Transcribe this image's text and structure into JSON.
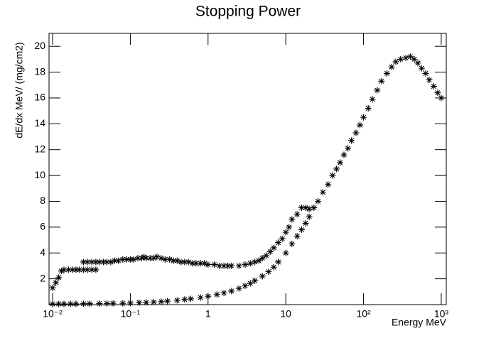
{
  "chart_data": {
    "type": "scatter",
    "title": "Stopping Power",
    "x_label": "Energy MeV",
    "y_label": "dE/dx  MeV/ (mg/cm2)",
    "xlog": true,
    "xlim": [
      0.009,
      1160
    ],
    "ylim": [
      0,
      21
    ],
    "xticks": [
      {
        "value": 0.01,
        "label": "10⁻²"
      },
      {
        "value": 0.1,
        "label": "10⁻¹"
      },
      1,
      10,
      {
        "value": 100,
        "label": "10²"
      },
      {
        "value": 1000,
        "label": "10³"
      }
    ],
    "yticks": [
      2,
      4,
      6,
      8,
      10,
      12,
      14,
      16,
      18,
      20
    ],
    "series": [
      {
        "color": "#000000",
        "x": [
          0.01,
          0.011,
          0.012,
          0.013,
          0.014,
          0.016,
          0.018,
          0.02,
          0.022,
          0.025,
          0.028,
          0.032,
          0.036,
          0.025,
          0.028,
          0.032,
          0.036,
          0.04,
          0.045,
          0.05,
          0.056,
          0.063,
          0.07,
          0.08,
          0.09,
          0.1,
          0.11,
          0.125,
          0.14,
          0.15,
          0.16,
          0.18,
          0.2,
          0.22,
          0.25,
          0.28,
          0.32,
          0.36,
          0.4,
          0.45,
          0.5,
          0.56,
          0.63,
          0.7,
          0.8,
          0.9,
          1.0,
          1.2,
          1.4,
          1.6,
          1.8,
          2.0,
          2.5,
          3.0,
          3.5,
          4.0,
          4.5,
          5,
          5.6,
          6.3,
          7,
          8,
          9,
          10,
          11,
          12,
          14,
          16,
          18,
          20
        ],
        "values": [
          1.3,
          1.7,
          2.1,
          2.6,
          2.7,
          2.7,
          2.7,
          2.7,
          2.7,
          2.7,
          2.7,
          2.7,
          2.7,
          3.3,
          3.3,
          3.3,
          3.3,
          3.3,
          3.3,
          3.3,
          3.3,
          3.4,
          3.4,
          3.5,
          3.5,
          3.5,
          3.5,
          3.6,
          3.6,
          3.7,
          3.6,
          3.6,
          3.6,
          3.7,
          3.6,
          3.5,
          3.5,
          3.4,
          3.4,
          3.3,
          3.3,
          3.3,
          3.2,
          3.2,
          3.2,
          3.2,
          3.1,
          3.1,
          3.0,
          3.0,
          3.0,
          3.0,
          3.0,
          3.1,
          3.2,
          3.3,
          3.4,
          3.6,
          3.8,
          4.1,
          4.4,
          4.8,
          5.1,
          5.6,
          6.0,
          6.6,
          7.0,
          7.5,
          7.5,
          7.4
        ]
      },
      {
        "color": "#000000",
        "x": [
          0.01,
          0.012,
          0.014,
          0.017,
          0.02,
          0.025,
          0.03,
          0.04,
          0.05,
          0.06,
          0.08,
          0.1,
          0.13,
          0.16,
          0.2,
          0.25,
          0.3,
          0.4,
          0.5,
          0.6,
          0.8,
          1,
          1.3,
          1.6,
          2,
          2.5,
          3,
          3.5,
          4,
          5,
          6,
          7,
          8,
          10,
          12,
          14,
          16,
          18,
          20,
          23,
          26,
          30,
          35,
          40,
          45,
          50,
          56,
          63,
          70,
          80,
          90,
          100,
          115,
          130,
          150,
          170,
          200,
          230,
          260,
          300,
          350,
          400,
          450,
          500,
          560,
          630,
          700,
          800,
          900,
          1000
        ],
        "values": [
          0.05,
          0.05,
          0.05,
          0.06,
          0.06,
          0.07,
          0.07,
          0.08,
          0.09,
          0.1,
          0.1,
          0.12,
          0.15,
          0.17,
          0.2,
          0.23,
          0.27,
          0.33,
          0.4,
          0.45,
          0.55,
          0.65,
          0.78,
          0.9,
          1.05,
          1.25,
          1.45,
          1.65,
          1.85,
          2.2,
          2.55,
          2.9,
          3.3,
          4.0,
          4.7,
          5.3,
          5.8,
          6.3,
          6.8,
          7.5,
          8.0,
          8.7,
          9.3,
          10.0,
          10.5,
          11.0,
          11.6,
          12.1,
          12.7,
          13.3,
          13.9,
          14.5,
          15.2,
          15.9,
          16.6,
          17.3,
          17.9,
          18.4,
          18.8,
          19.0,
          19.1,
          19.2,
          19.0,
          18.7,
          18.3,
          17.9,
          17.4,
          16.9,
          16.4,
          16.0
        ]
      }
    ]
  }
}
